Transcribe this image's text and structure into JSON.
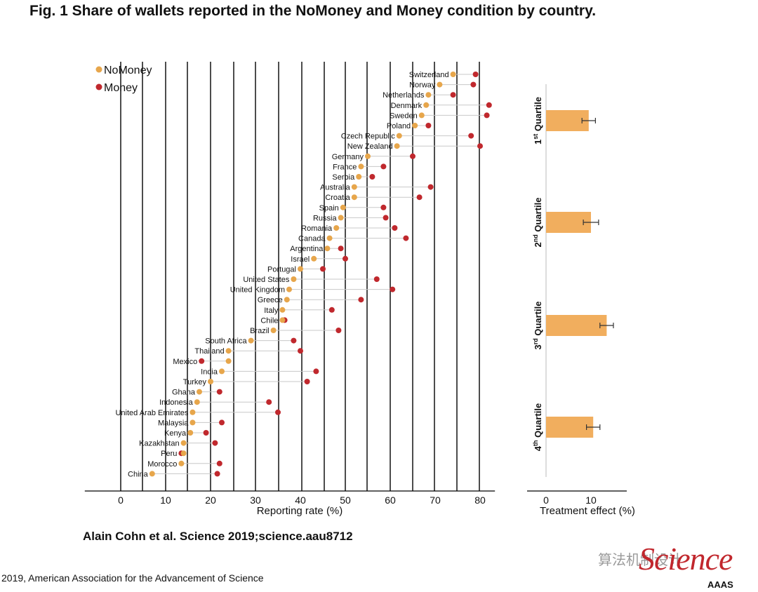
{
  "title": "Fig. 1 Share of wallets reported in the NoMoney and Money condition by country.",
  "citation": "Alain Cohn et al. Science 2019;science.aau8712",
  "copyright": "2019, American Association for the Advancement of Science",
  "watermark": "算法机制设计",
  "logo_text": "Science",
  "publisher_text": "AAAS",
  "colors": {
    "nomoney": "#e7a64b",
    "money": "#c0282d",
    "bar": "#f1ae5e",
    "connector": "#c8c8c8"
  },
  "chart_data": [
    {
      "type": "scatter",
      "subtype": "dumbbell",
      "xlabel": "Reporting rate (%)",
      "ylabel": "",
      "xlim": [
        -8,
        88
      ],
      "xticks": [
        0,
        10,
        20,
        30,
        40,
        50,
        60,
        70,
        80
      ],
      "legend": {
        "placement": "top-left",
        "entries": [
          "NoMoney",
          "Money"
        ]
      },
      "series": [
        {
          "name": "NoMoney"
        },
        {
          "name": "Money"
        }
      ],
      "countries": [
        {
          "name": "Switzerland",
          "nomoney": 74,
          "money": 79
        },
        {
          "name": "Norway",
          "nomoney": 71,
          "money": 78.5
        },
        {
          "name": "Netherlands",
          "nomoney": 68.5,
          "money": 74
        },
        {
          "name": "Denmark",
          "nomoney": 68,
          "money": 82
        },
        {
          "name": "Sweden",
          "nomoney": 67,
          "money": 81.5
        },
        {
          "name": "Poland",
          "nomoney": 65.5,
          "money": 68.5
        },
        {
          "name": "Czech Republic",
          "nomoney": 62,
          "money": 78
        },
        {
          "name": "New Zealand",
          "nomoney": 61.5,
          "money": 80
        },
        {
          "name": "Germany",
          "nomoney": 55,
          "money": 65
        },
        {
          "name": "France",
          "nomoney": 53.5,
          "money": 58.5
        },
        {
          "name": "Serbia",
          "nomoney": 53,
          "money": 56
        },
        {
          "name": "Australia",
          "nomoney": 52,
          "money": 69
        },
        {
          "name": "Croatia",
          "nomoney": 52,
          "money": 66.5
        },
        {
          "name": "Spain",
          "nomoney": 49.5,
          "money": 58.5
        },
        {
          "name": "Russia",
          "nomoney": 49,
          "money": 59
        },
        {
          "name": "Romania",
          "nomoney": 48,
          "money": 61
        },
        {
          "name": "Canada",
          "nomoney": 46.5,
          "money": 63.5
        },
        {
          "name": "Argentina",
          "nomoney": 46,
          "money": 49
        },
        {
          "name": "Israel",
          "nomoney": 43,
          "money": 50
        },
        {
          "name": "Portugal",
          "nomoney": 40,
          "money": 45
        },
        {
          "name": "United States",
          "nomoney": 38.5,
          "money": 57
        },
        {
          "name": "United Kingdom",
          "nomoney": 37.5,
          "money": 60.5
        },
        {
          "name": "Greece",
          "nomoney": 37,
          "money": 53.5
        },
        {
          "name": "Italy",
          "nomoney": 36,
          "money": 47
        },
        {
          "name": "Chile",
          "nomoney": 36,
          "money": 36.5
        },
        {
          "name": "Brazil",
          "nomoney": 34,
          "money": 48.5
        },
        {
          "name": "South Africa",
          "nomoney": 29,
          "money": 38.5
        },
        {
          "name": "Thailand",
          "nomoney": 24,
          "money": 40
        },
        {
          "name": "Mexico",
          "nomoney": 24,
          "money": 18
        },
        {
          "name": "India",
          "nomoney": 22.5,
          "money": 43.5
        },
        {
          "name": "Turkey",
          "nomoney": 20,
          "money": 41.5
        },
        {
          "name": "Ghana",
          "nomoney": 17.5,
          "money": 22
        },
        {
          "name": "Indonesia",
          "nomoney": 17,
          "money": 33
        },
        {
          "name": "United Arab Emirates",
          "nomoney": 16,
          "money": 35
        },
        {
          "name": "Malaysia",
          "nomoney": 16,
          "money": 22.5
        },
        {
          "name": "Kenya",
          "nomoney": 15.5,
          "money": 19
        },
        {
          "name": "Kazakhstan",
          "nomoney": 14,
          "money": 21
        },
        {
          "name": "Peru",
          "nomoney": 14,
          "money": 13.5
        },
        {
          "name": "Morocco",
          "nomoney": 13.5,
          "money": 22
        },
        {
          "name": "China",
          "nomoney": 7,
          "money": 21.5
        }
      ]
    },
    {
      "type": "bar",
      "orientation": "horizontal",
      "xlabel": "Treatment effect (%)",
      "ylabel": "",
      "xlim": [
        -4,
        22
      ],
      "xticks": [
        0,
        10
      ],
      "categories": [
        "1st Quartile",
        "2nd Quartile",
        "3rd Quartile",
        "4th Quartile"
      ],
      "category_parts": [
        {
          "num": "1",
          "sup": "st",
          "rest": " Quartile"
        },
        {
          "num": "2",
          "sup": "nd",
          "rest": " Quartile"
        },
        {
          "num": "3",
          "sup": "rd",
          "rest": " Quartile"
        },
        {
          "num": "4",
          "sup": "th",
          "rest": " Quartile"
        }
      ],
      "values": [
        9.5,
        10,
        13.5,
        10.5
      ],
      "error": [
        1.5,
        1.7,
        1.5,
        1.5
      ]
    }
  ]
}
